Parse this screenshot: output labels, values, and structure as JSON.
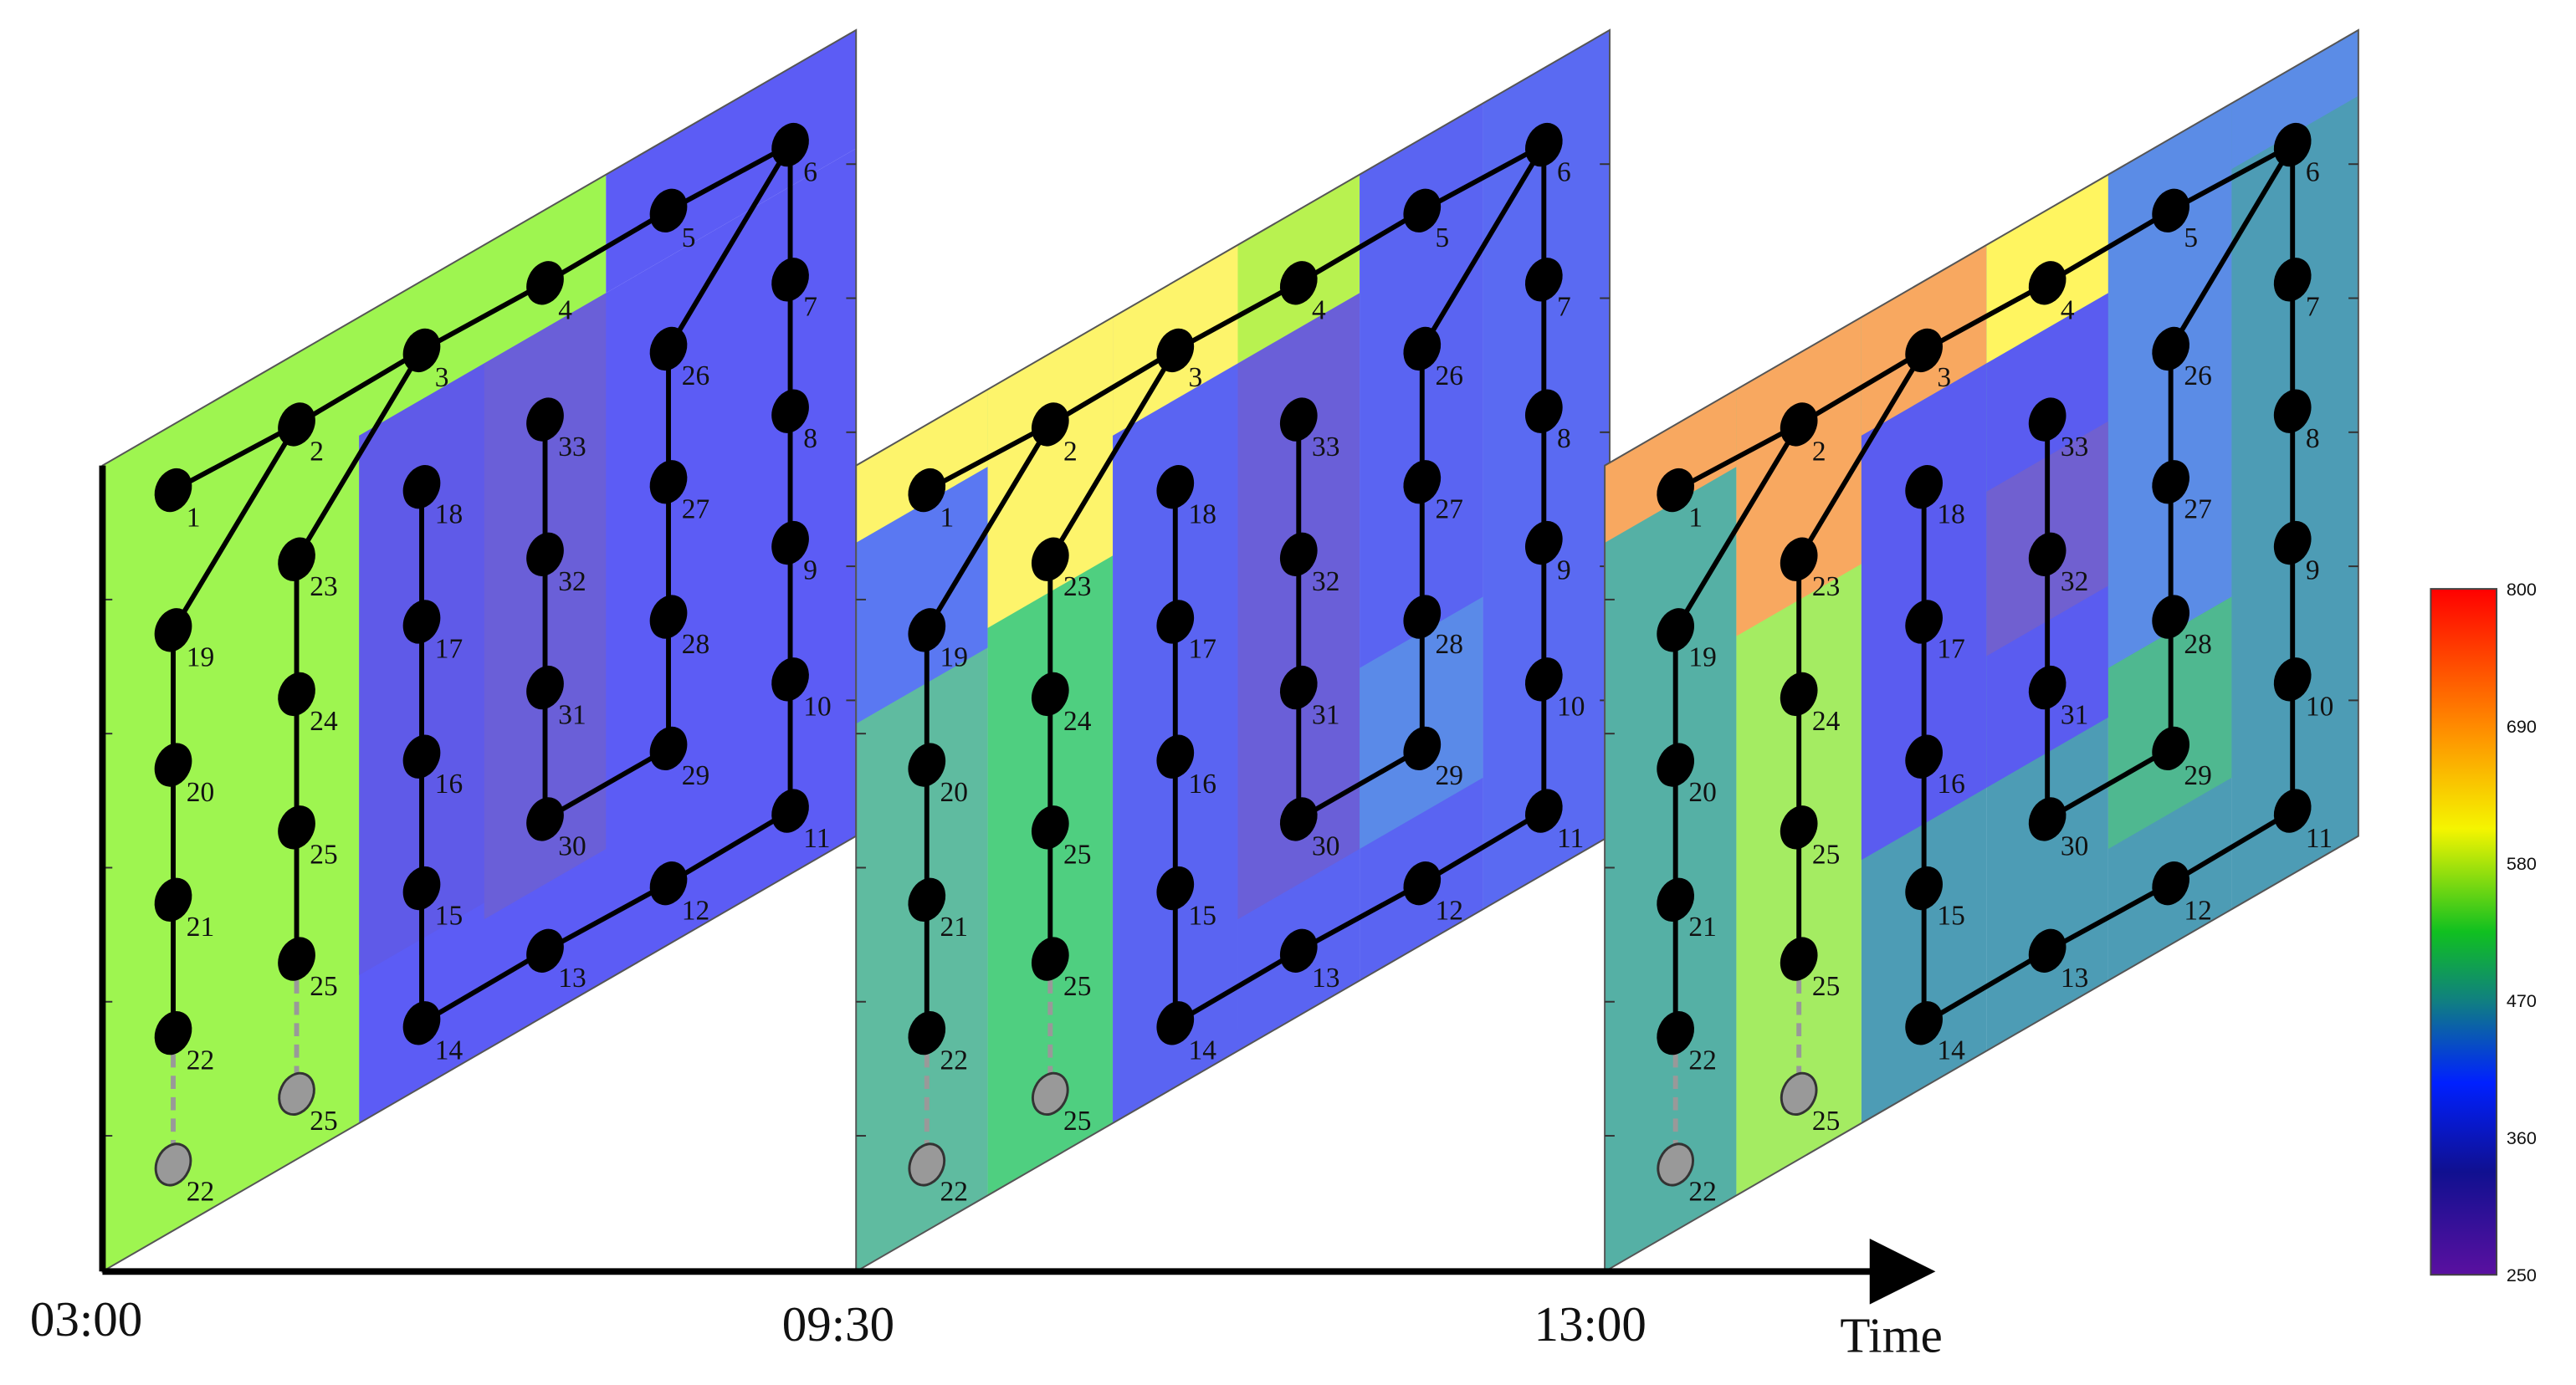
{
  "time_axis": {
    "label": "Time",
    "ticks": [
      "03:00",
      "09:30",
      "13:00"
    ]
  },
  "nodes": [
    {
      "label": "1"
    },
    {
      "label": "2"
    },
    {
      "label": "3"
    },
    {
      "label": "4"
    },
    {
      "label": "5"
    },
    {
      "label": "6"
    },
    {
      "label": "7"
    },
    {
      "label": "8"
    },
    {
      "label": "9"
    },
    {
      "label": "10"
    },
    {
      "label": "11"
    },
    {
      "label": "12"
    },
    {
      "label": "13"
    },
    {
      "label": "14"
    },
    {
      "label": "15"
    },
    {
      "label": "16"
    },
    {
      "label": "17"
    },
    {
      "label": "18"
    },
    {
      "label": "19"
    },
    {
      "label": "20"
    },
    {
      "label": "21"
    },
    {
      "label": "22"
    },
    {
      "label": "23"
    },
    {
      "label": "24"
    },
    {
      "label": "25"
    },
    {
      "label": "26"
    },
    {
      "label": "27"
    },
    {
      "label": "28"
    },
    {
      "label": "29"
    },
    {
      "label": "30"
    },
    {
      "label": "31"
    },
    {
      "label": "32"
    },
    {
      "label": "33"
    },
    {
      "label": "25"
    },
    {
      "label": "22"
    },
    {
      "label": "25"
    }
  ],
  "colorbar": {
    "ticks": [
      "800",
      "690",
      "580",
      "470",
      "360",
      "250"
    ]
  }
}
